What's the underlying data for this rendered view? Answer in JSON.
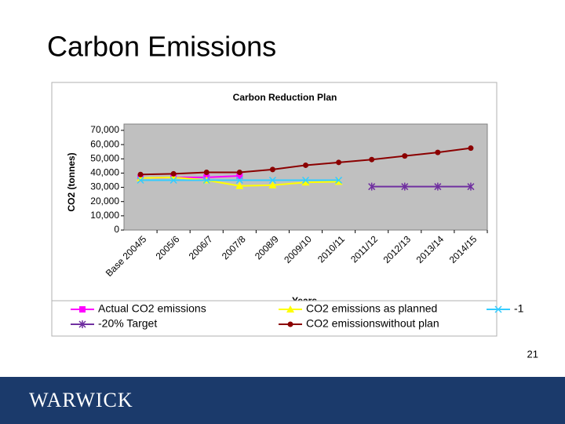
{
  "slide_title": "Carbon Emissions",
  "page_number": "21",
  "footer_logo": "WARWICK",
  "chart_data": {
    "type": "line",
    "title": "Carbon Reduction Plan",
    "x_label": "Years",
    "y_label": "CO2 (tonnes)",
    "categories": [
      "Base 2004/5",
      "2005/6",
      "2006/7",
      "2007/8",
      "2008/9",
      "2009/10",
      "2010/11",
      "2011/12",
      "2012/13",
      "2013/14",
      "2014/15"
    ],
    "ylim": [
      0,
      70000
    ],
    "yticks": [
      0,
      {
        "value": 10000,
        "label": "10,000"
      },
      {
        "value": 20000,
        "label": "20,000"
      },
      {
        "value": 30000,
        "label": "30,000"
      },
      {
        "value": 40000,
        "label": "40,000"
      },
      {
        "value": 50000,
        "label": "50,000"
      },
      {
        "value": 60000,
        "label": "60,000"
      },
      {
        "value": 70000,
        "label": "70,000"
      }
    ],
    "plot_background": "#c0c0c0",
    "series": [
      {
        "name": "Actual CO2 emissions",
        "color": "#ff00ff",
        "marker": "square",
        "values": [
          36500,
          37000,
          37000,
          38000,
          null,
          null,
          null,
          null,
          null,
          null,
          null
        ]
      },
      {
        "name": "CO2 emissions as planned",
        "color": "#ffff00",
        "marker": "triangle",
        "values": [
          36500,
          37000,
          35000,
          31000,
          31500,
          33500,
          34000,
          null,
          null,
          null,
          null
        ]
      },
      {
        "name": "-1",
        "color": "#33ccff",
        "marker": "x",
        "values": [
          35000,
          35000,
          35000,
          35000,
          35000,
          35000,
          35000,
          null,
          null,
          null,
          null
        ]
      },
      {
        "name": "-20% Target",
        "color": "#7030a0",
        "marker": "asterisk",
        "values": [
          null,
          null,
          null,
          null,
          null,
          null,
          null,
          30500,
          30500,
          30500,
          30500
        ]
      },
      {
        "name": "CO2 emissionswithout plan",
        "color": "#8b0000",
        "marker": "circle",
        "values": [
          39000,
          39500,
          40500,
          40500,
          42500,
          45500,
          47500,
          49500,
          52000,
          54500,
          57500
        ]
      }
    ]
  }
}
